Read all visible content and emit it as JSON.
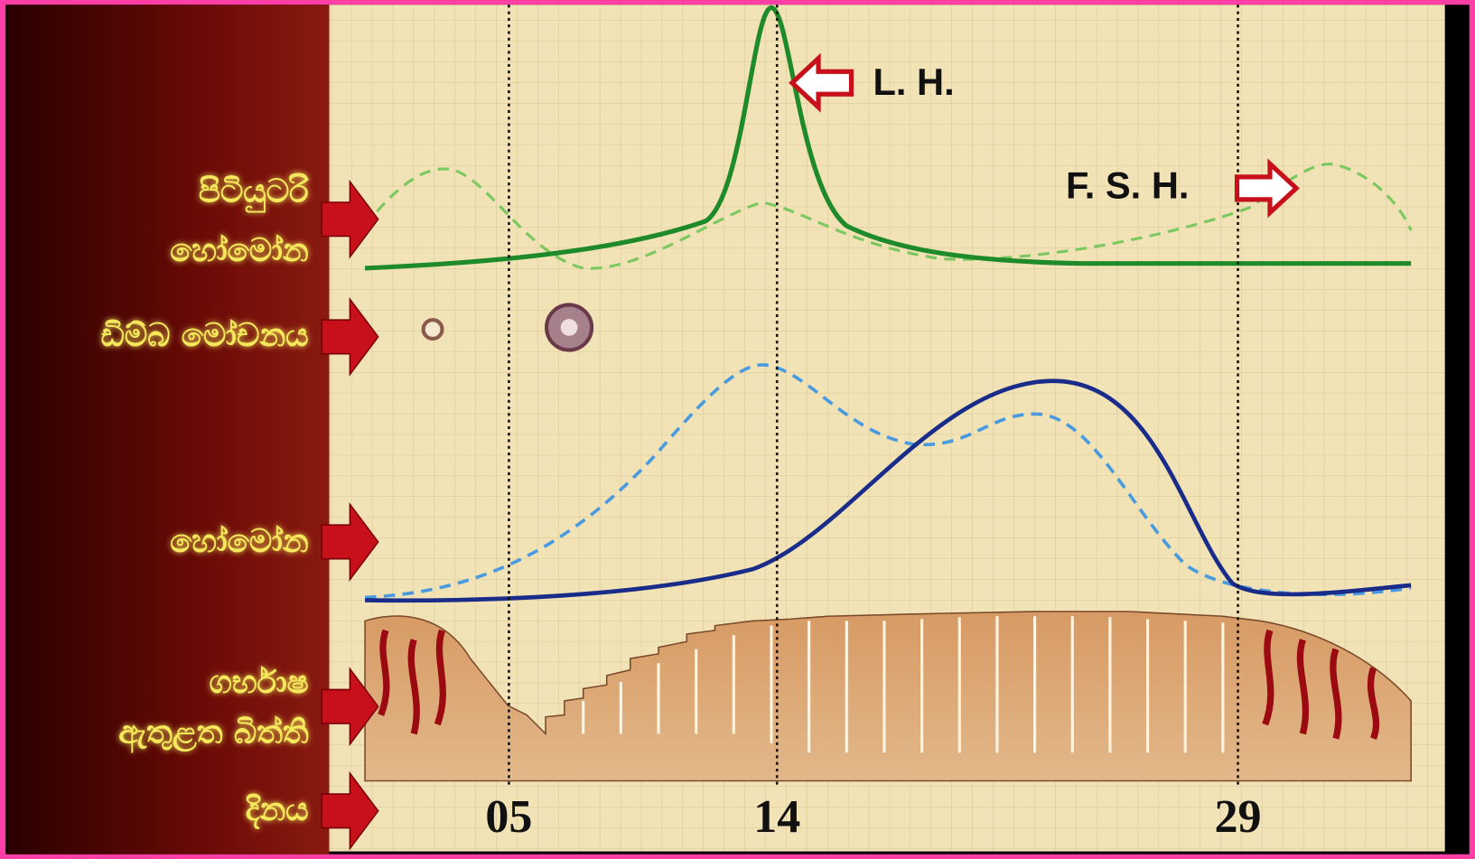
{
  "side_labels": [
    {
      "lines": [
        "පිටියුටරි",
        "හෝමෝන"
      ]
    },
    {
      "lines": [
        "ඩිම්බ මෝචනය"
      ]
    },
    {
      "lines": [
        "හෝමෝන"
      ]
    },
    {
      "lines": [
        "ගර්භාෂ",
        "ඇතුළත බිත්ති"
      ]
    },
    {
      "lines": [
        "දිනය"
      ]
    }
  ],
  "curve_labels": {
    "lh": "L. H.",
    "fsh": "F. S. H."
  },
  "day_labels": [
    "05",
    "14",
    "29"
  ]
}
